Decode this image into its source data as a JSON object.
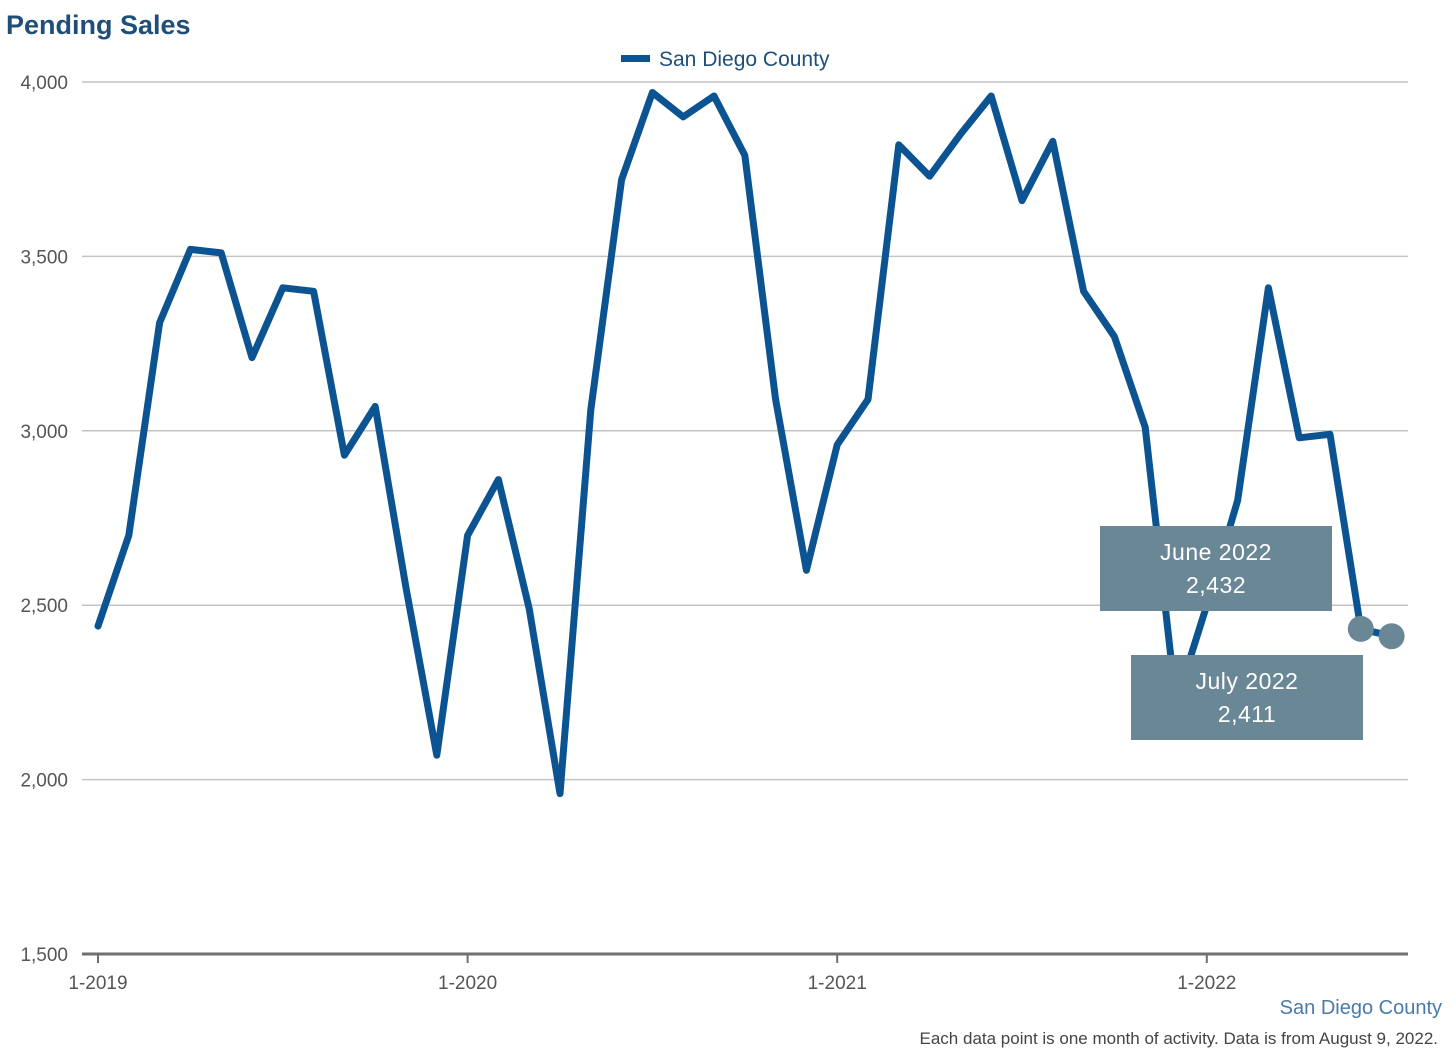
{
  "chart_data": {
    "type": "line",
    "title": "Pending Sales",
    "legend": {
      "position": "top-center"
    },
    "x": [
      "1-2019",
      "2-2019",
      "3-2019",
      "4-2019",
      "5-2019",
      "6-2019",
      "7-2019",
      "8-2019",
      "9-2019",
      "10-2019",
      "11-2019",
      "12-2019",
      "1-2020",
      "2-2020",
      "3-2020",
      "4-2020",
      "5-2020",
      "6-2020",
      "7-2020",
      "8-2020",
      "9-2020",
      "10-2020",
      "11-2020",
      "12-2020",
      "1-2021",
      "2-2021",
      "3-2021",
      "4-2021",
      "5-2021",
      "6-2021",
      "7-2021",
      "8-2021",
      "9-2021",
      "10-2021",
      "11-2021",
      "12-2021",
      "1-2022",
      "2-2022",
      "3-2022",
      "4-2022",
      "5-2022",
      "6-2022",
      "7-2022"
    ],
    "x_ticks": [
      "1-2019",
      "1-2020",
      "1-2021",
      "1-2022"
    ],
    "series": [
      {
        "name": "San Diego County",
        "color": "#0b5391",
        "values": [
          2440,
          2700,
          3310,
          3520,
          3510,
          3210,
          3410,
          3400,
          2930,
          3070,
          2550,
          2070,
          2700,
          2860,
          2490,
          1960,
          3060,
          3720,
          3970,
          3900,
          3960,
          3790,
          3090,
          2600,
          2960,
          3090,
          3820,
          3730,
          3850,
          3960,
          3660,
          3830,
          3400,
          3270,
          3010,
          2220,
          2500,
          2800,
          3410,
          2980,
          2990,
          2432,
          2411
        ]
      }
    ],
    "ylim": [
      1500,
      4000
    ],
    "y_ticks": [
      1500,
      2000,
      2500,
      3000,
      3500,
      4000
    ],
    "y_tick_labels": [
      "1,500",
      "2,000",
      "2,500",
      "3,000",
      "3,500",
      "4,000"
    ],
    "grid": true,
    "xlabel": "",
    "ylabel": "",
    "annotations": [
      {
        "label": "June 2022",
        "value_text": "2,432",
        "index": 41
      },
      {
        "label": "July 2022",
        "value_text": "2,411",
        "index": 42
      }
    ],
    "callout_color": "#6a8796"
  },
  "footer": {
    "series_label": "San Diego County",
    "series_label_color": "#4a7aaa",
    "note": "Each data point is one month of activity. Data is from August 9, 2022."
  }
}
